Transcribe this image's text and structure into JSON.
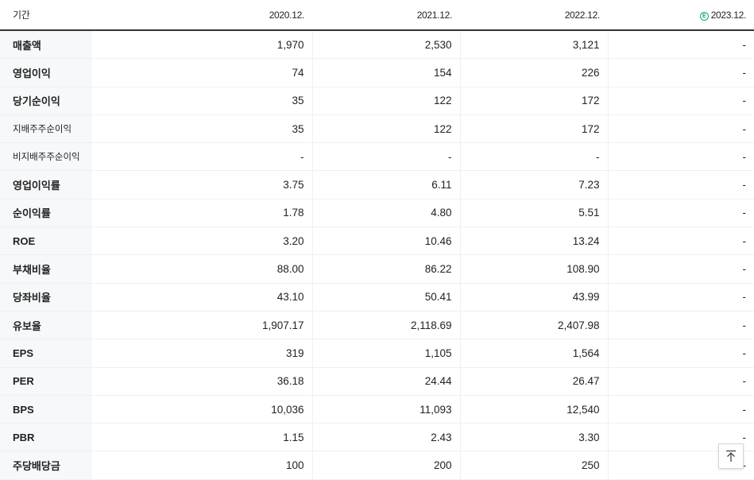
{
  "header": {
    "label": "기간",
    "periods": [
      "2020.12.",
      "2021.12.",
      "2022.12.",
      "2023.12."
    ],
    "estimate_badge": "E",
    "estimate_color": "#1aa760"
  },
  "rows": [
    {
      "label": "매출액",
      "values": [
        "1,970",
        "2,530",
        "3,121",
        "-"
      ]
    },
    {
      "label": "영업이익",
      "values": [
        "74",
        "154",
        "226",
        "-"
      ]
    },
    {
      "label": "당기순이익",
      "values": [
        "35",
        "122",
        "172",
        "-"
      ]
    },
    {
      "label": "지배주주순이익",
      "values": [
        "35",
        "122",
        "172",
        "-"
      ]
    },
    {
      "label": "비지배주주순이익",
      "values": [
        "-",
        "-",
        "-",
        "-"
      ]
    },
    {
      "label": "영업이익률",
      "values": [
        "3.75",
        "6.11",
        "7.23",
        "-"
      ]
    },
    {
      "label": "순이익률",
      "values": [
        "1.78",
        "4.80",
        "5.51",
        "-"
      ]
    },
    {
      "label": "ROE",
      "values": [
        "3.20",
        "10.46",
        "13.24",
        "-"
      ]
    },
    {
      "label": "부채비율",
      "values": [
        "88.00",
        "86.22",
        "108.90",
        "-"
      ]
    },
    {
      "label": "당좌비율",
      "values": [
        "43.10",
        "50.41",
        "43.99",
        "-"
      ]
    },
    {
      "label": "유보율",
      "values": [
        "1,907.17",
        "2,118.69",
        "2,407.98",
        "-"
      ]
    },
    {
      "label": "EPS",
      "values": [
        "319",
        "1,105",
        "1,564",
        "-"
      ]
    },
    {
      "label": "PER",
      "values": [
        "36.18",
        "24.44",
        "26.47",
        "-"
      ]
    },
    {
      "label": "BPS",
      "values": [
        "10,036",
        "11,093",
        "12,540",
        "-"
      ]
    },
    {
      "label": "PBR",
      "values": [
        "1.15",
        "2.43",
        "3.30",
        "-"
      ]
    },
    {
      "label": "주당배당금",
      "values": [
        "100",
        "200",
        "250",
        "-"
      ]
    }
  ],
  "scroll_top_icon": "arrow-up-to-top-icon"
}
